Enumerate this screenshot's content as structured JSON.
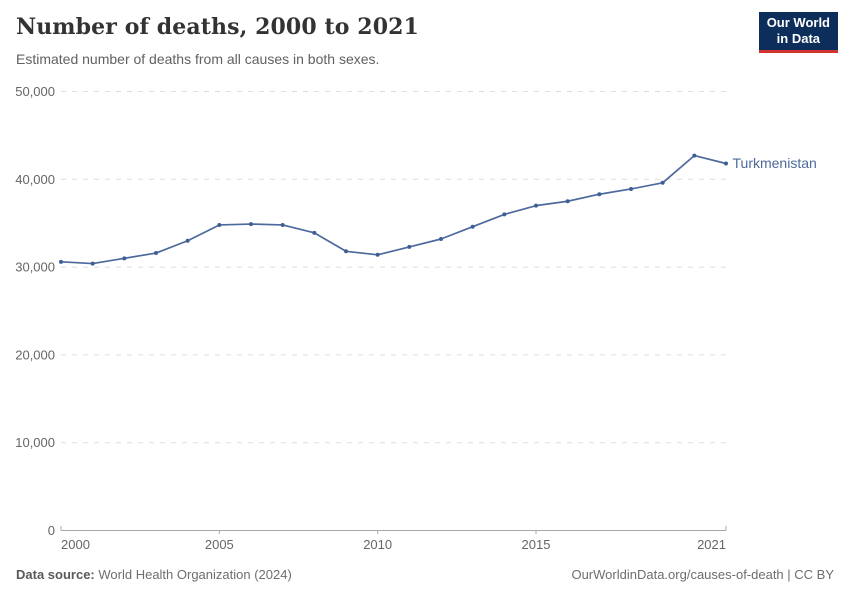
{
  "header": {
    "title": "Number of deaths, 2000 to 2021",
    "subtitle": "Estimated number of deaths from all causes in both sexes."
  },
  "logo": {
    "line1": "Our World",
    "line2": "in Data"
  },
  "chart_data": {
    "type": "line",
    "title": "Number of deaths, 2000 to 2021",
    "xlabel": "",
    "ylabel": "",
    "x": [
      2000,
      2001,
      2002,
      2003,
      2004,
      2005,
      2006,
      2007,
      2008,
      2009,
      2010,
      2011,
      2012,
      2013,
      2014,
      2015,
      2016,
      2017,
      2018,
      2019,
      2020,
      2021
    ],
    "series": [
      {
        "name": "Turkmenistan",
        "color": "#4C6A9C",
        "values": [
          30600,
          30400,
          31000,
          31600,
          33000,
          34800,
          34900,
          34800,
          33900,
          31800,
          31400,
          32300,
          33200,
          34600,
          36000,
          37000,
          37500,
          38300,
          38900,
          39600,
          42700,
          41800
        ]
      }
    ],
    "ylim": [
      0,
      50000
    ],
    "yticks": [
      {
        "value": 0,
        "label": "0"
      },
      {
        "value": 10000,
        "label": "10,000"
      },
      {
        "value": 20000,
        "label": "20,000"
      },
      {
        "value": 30000,
        "label": "30,000"
      },
      {
        "value": 40000,
        "label": "40,000"
      },
      {
        "value": 50000,
        "label": "50,000"
      }
    ],
    "xticks": [
      {
        "value": 2000,
        "label": "2000"
      },
      {
        "value": 2005,
        "label": "2005"
      },
      {
        "value": 2010,
        "label": "2010"
      },
      {
        "value": 2015,
        "label": "2015"
      },
      {
        "value": 2021,
        "label": "2021"
      }
    ],
    "grid": "horizontal-dashed",
    "legend_position": "line-end-label"
  },
  "footer": {
    "source_label": "Data source:",
    "source_text": "World Health Organization (2024)",
    "credit": "OurWorldinData.org/causes-of-death | CC BY"
  },
  "colors": {
    "line": "#4C6A9C",
    "marker": "#3E5F95",
    "grid": "#DDDDDD",
    "axis": "#A8A8A8",
    "tick_text": "#666666",
    "title_text": "#333333",
    "subtitle_text": "#616161",
    "logo_bg": "#0D2E5A",
    "logo_red": "#D0342C"
  }
}
